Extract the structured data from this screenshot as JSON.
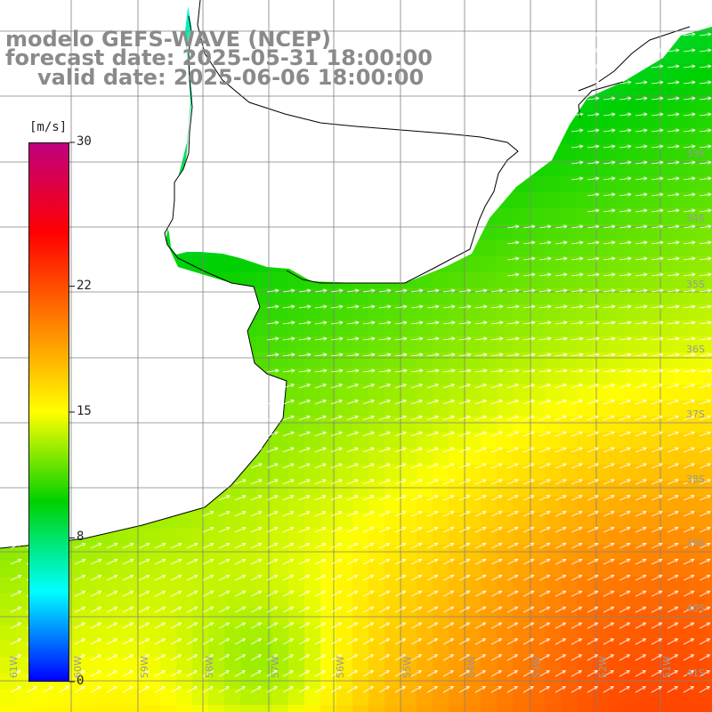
{
  "title": {
    "line1": "modelo GEFS-WAVE (NCEP)",
    "line2": "forecast date: 2025-05-31 18:00:00",
    "line3": "valid date: 2025-06-06 18:00:00"
  },
  "colorbar": {
    "unit": "[m/s]",
    "min": 0,
    "max": 30,
    "tick_labels": [
      "30",
      "22",
      "15",
      "8",
      "0"
    ],
    "tick_values": [
      30,
      22,
      15,
      8,
      0
    ],
    "colors": [
      "#0000ff",
      "#00ffff",
      "#00d000",
      "#ffff00",
      "#ff8000",
      "#ff0000",
      "#c0007f"
    ]
  },
  "map": {
    "variable": "wind speed",
    "lat_labels": [
      "33S",
      "34S",
      "35S",
      "36S",
      "37S",
      "38S",
      "39S",
      "40S",
      "41S"
    ],
    "lon_labels": [
      "61W",
      "60W",
      "59W",
      "58W",
      "57W",
      "56W",
      "55W",
      "54W",
      "53W",
      "52W",
      "51W"
    ],
    "land_color": "#ffffff",
    "coast_color": "#000000",
    "grid_color": "#808080",
    "arrow_color": "#ffffff"
  }
}
